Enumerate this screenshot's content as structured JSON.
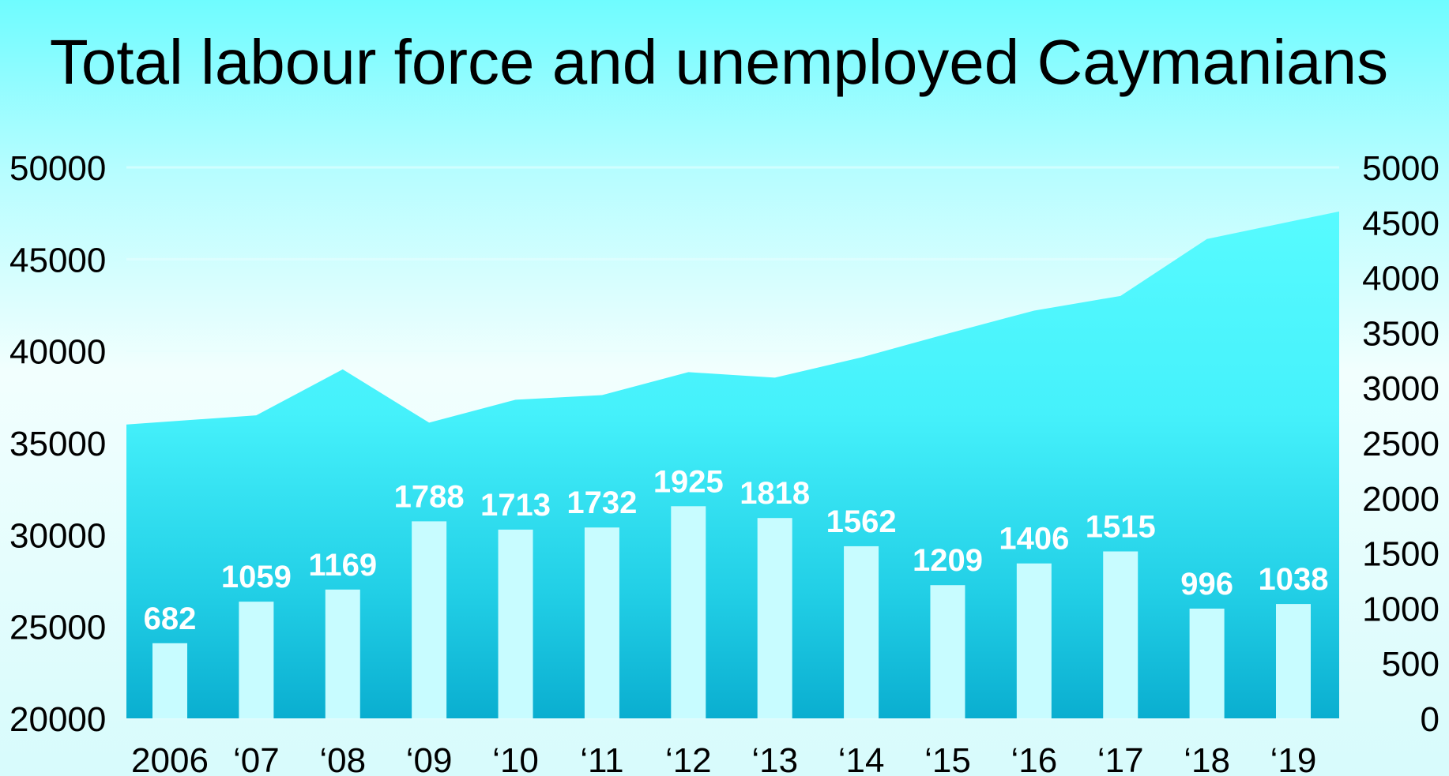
{
  "chart_data": {
    "type": "bar",
    "title": "Total labour force and unemployed Caymanians",
    "categories": [
      "2006",
      "‘07",
      "‘08",
      "‘09",
      "‘10",
      "‘11",
      "‘12",
      "‘13",
      "‘14",
      "‘15",
      "‘16",
      "‘17",
      "‘18",
      "‘19"
    ],
    "series": [
      {
        "type": "area",
        "axis": "left",
        "values": [
          36000,
          36500,
          39000,
          36100,
          37350,
          37600,
          38850,
          38550,
          39650,
          40950,
          42200,
          43000,
          46100,
          47600
        ]
      },
      {
        "type": "bar",
        "axis": "right",
        "values": [
          682,
          1059,
          1169,
          1788,
          1713,
          1732,
          1925,
          1818,
          1562,
          1209,
          1406,
          1515,
          996,
          1038
        ],
        "labels": [
          "682",
          "1059",
          "1169",
          "1788",
          "1713",
          "1732",
          "1925",
          "1818",
          "1562",
          "1209",
          "1406",
          "1515",
          "996",
          "1038"
        ]
      }
    ],
    "left_axis": {
      "ylim": [
        20000,
        50000
      ],
      "ticks": [
        "50000",
        "45000",
        "40000",
        "35000",
        "30000",
        "25000",
        "20000"
      ]
    },
    "right_axis": {
      "ylim": [
        0,
        5000
      ],
      "ticks": [
        "5000",
        "4500",
        "4000",
        "3500",
        "3000",
        "2500",
        "2000",
        "1500",
        "1000",
        "500",
        "0"
      ]
    },
    "grid": true,
    "colors": {
      "area_top": "#52fbff",
      "area_bottom": "#0eb3d4",
      "bar": "#c8fcff",
      "label": "#ffffff"
    }
  }
}
